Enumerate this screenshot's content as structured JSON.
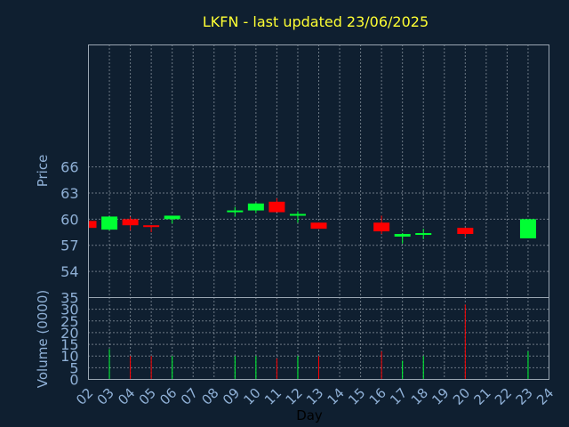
{
  "chart_data": {
    "type": "candlestick",
    "title": "LKFN - last updated 23/06/2025",
    "price_panel": {
      "ylabel": "Price",
      "ylim": [
        51,
        80
      ],
      "yticks": [
        "54",
        "57",
        "60",
        "63",
        "66"
      ]
    },
    "volume_panel": {
      "ylabel": "Volume (0000)",
      "ylim": [
        0,
        35
      ],
      "yticks": [
        "0",
        "5",
        "10",
        "15",
        "20",
        "25",
        "30",
        "35"
      ]
    },
    "xlabel": "Day",
    "x_ticks": [
      "02",
      "03",
      "04",
      "05",
      "06",
      "07",
      "08",
      "09",
      "10",
      "11",
      "12",
      "13",
      "14",
      "15",
      "16",
      "17",
      "18",
      "19",
      "20",
      "21",
      "22",
      "23",
      "24"
    ],
    "colors": {
      "up": "#00ff33",
      "down": "#ff0000",
      "title": "#ffff33",
      "axis_text": "#8fb0d6",
      "background": "#0f1f30"
    },
    "candles": [
      {
        "day": "02",
        "open": 59.8,
        "close": 59.0,
        "high": 59.8,
        "low": 59.0,
        "volume": 0
      },
      {
        "day": "03",
        "open": 58.8,
        "close": 60.3,
        "high": 60.3,
        "low": 58.7,
        "volume": 13
      },
      {
        "day": "04",
        "open": 60.0,
        "close": 59.3,
        "high": 60.3,
        "low": 58.7,
        "volume": 10
      },
      {
        "day": "05",
        "open": 59.3,
        "close": 59.2,
        "high": 59.3,
        "low": 58.5,
        "volume": 10
      },
      {
        "day": "06",
        "open": 60.0,
        "close": 60.4,
        "high": 60.4,
        "low": 59.5,
        "volume": 10
      },
      {
        "day": "09",
        "open": 60.9,
        "close": 61.0,
        "high": 61.4,
        "low": 60.3,
        "volume": 10
      },
      {
        "day": "10",
        "open": 61.0,
        "close": 61.8,
        "high": 61.9,
        "low": 60.7,
        "volume": 10
      },
      {
        "day": "11",
        "open": 62.0,
        "close": 60.8,
        "high": 62.4,
        "low": 60.8,
        "volume": 9
      },
      {
        "day": "12",
        "open": 60.4,
        "close": 60.6,
        "high": 60.9,
        "low": 59.6,
        "volume": 10
      },
      {
        "day": "13",
        "open": 59.6,
        "close": 58.9,
        "high": 59.6,
        "low": 58.9,
        "volume": 10
      },
      {
        "day": "16",
        "open": 59.6,
        "close": 58.6,
        "high": 60.4,
        "low": 58.3,
        "volume": 12
      },
      {
        "day": "17",
        "open": 58.0,
        "close": 58.3,
        "high": 58.4,
        "low": 57.2,
        "volume": 8
      },
      {
        "day": "18",
        "open": 58.2,
        "close": 58.4,
        "high": 58.9,
        "low": 57.7,
        "volume": 10
      },
      {
        "day": "20",
        "open": 59.0,
        "close": 58.3,
        "high": 59.0,
        "low": 58.0,
        "volume": 32
      },
      {
        "day": "23",
        "open": 57.8,
        "close": 60.0,
        "high": 60.0,
        "low": 57.8,
        "volume": 12
      }
    ]
  }
}
